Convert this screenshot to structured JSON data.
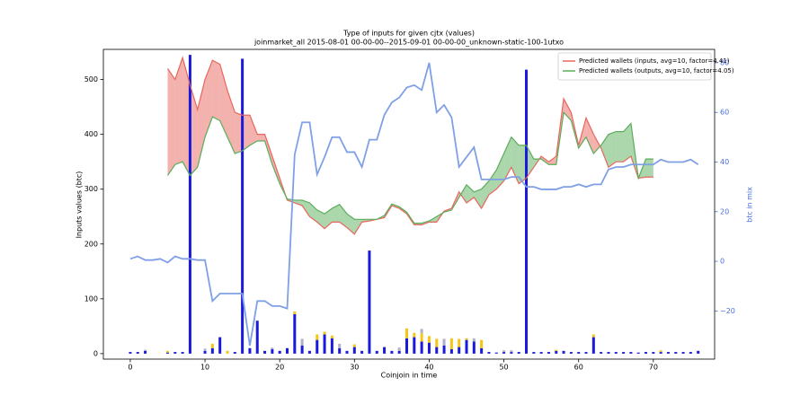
{
  "chart_data": {
    "type": "line",
    "title": "Type of inputs for given cjtx (values)",
    "subtitle": "joinmarket_all 2015-08-01 00-00-00--2015-09-01 00-00-00_unknown-static-100-1utxo",
    "xlabel": "Coinjoin in time",
    "ylabel": "Inputs values (btc)",
    "y2label": "btc in mix",
    "y2color": "#4a6ee0",
    "xlim": [
      -3.6,
      78.2
    ],
    "ylim": [
      -10,
      555
    ],
    "y2lim": [
      -39.4,
      85.4
    ],
    "xticks": [
      0,
      10,
      20,
      30,
      40,
      50,
      60,
      70
    ],
    "yticks": [
      0,
      100,
      200,
      300,
      400,
      500
    ],
    "y2ticks": [
      {
        "value": -20,
        "label": "−20"
      },
      0,
      20,
      40,
      60,
      80
    ],
    "legend": "upper right",
    "fill_between": [
      0,
      1
    ],
    "series": [
      {
        "name": "Predicted wallets (inputs, avg=10, factor=4.41)",
        "color": "#e8665e",
        "x": [
          5,
          6,
          7,
          8,
          9,
          10,
          11,
          12,
          13,
          14,
          15,
          16,
          17,
          18,
          19,
          20,
          21,
          22,
          23,
          24,
          25,
          26,
          27,
          28,
          29,
          30,
          31,
          32,
          33,
          34,
          35,
          36,
          37,
          38,
          39,
          40,
          41,
          42,
          43,
          44,
          45,
          46,
          47,
          48,
          49,
          50,
          51,
          52,
          53,
          54,
          55,
          56,
          57,
          58,
          59,
          60,
          61,
          62,
          63,
          64,
          65,
          66,
          67,
          68,
          69,
          70
        ],
        "values": [
          520,
          500,
          540,
          490,
          445,
          500,
          535,
          528,
          480,
          440,
          435,
          435,
          400,
          400,
          360,
          320,
          280,
          275,
          270,
          250,
          240,
          228,
          240,
          240,
          230,
          218,
          240,
          242,
          245,
          248,
          270,
          265,
          255,
          235,
          235,
          240,
          240,
          260,
          265,
          295,
          275,
          285,
          265,
          290,
          300,
          315,
          340,
          310,
          320,
          340,
          360,
          350,
          360,
          465,
          440,
          380,
          430,
          400,
          375,
          340,
          350,
          350,
          360,
          320,
          322,
          322
        ]
      },
      {
        "name": "Predicted wallets (outputs, avg=10, factor=4.05)",
        "color": "#5aad5a",
        "x": [
          5,
          6,
          7,
          8,
          9,
          10,
          11,
          12,
          13,
          14,
          15,
          16,
          17,
          18,
          19,
          20,
          21,
          22,
          23,
          24,
          25,
          26,
          27,
          28,
          29,
          30,
          31,
          32,
          33,
          34,
          35,
          36,
          37,
          38,
          39,
          40,
          41,
          42,
          43,
          44,
          45,
          46,
          47,
          48,
          49,
          50,
          51,
          52,
          53,
          54,
          55,
          56,
          57,
          58,
          59,
          60,
          61,
          62,
          63,
          64,
          65,
          66,
          67,
          68,
          69,
          70
        ],
        "values": [
          325,
          345,
          350,
          325,
          340,
          395,
          432,
          425,
          395,
          365,
          370,
          380,
          388,
          388,
          345,
          310,
          282,
          280,
          280,
          275,
          262,
          255,
          265,
          272,
          255,
          245,
          245,
          245,
          245,
          252,
          273,
          268,
          258,
          238,
          238,
          242,
          250,
          258,
          262,
          285,
          308,
          295,
          300,
          315,
          335,
          365,
          395,
          380,
          380,
          355,
          355,
          345,
          345,
          440,
          425,
          375,
          395,
          365,
          380,
          400,
          405,
          405,
          420,
          320,
          355,
          355
        ]
      },
      {
        "color": "#7fa0e6",
        "axis": "y2",
        "x": [
          0,
          1,
          2,
          3,
          4,
          5,
          6,
          7,
          8,
          9,
          10,
          11,
          12,
          13,
          14,
          15,
          16,
          17,
          18,
          19,
          20,
          21,
          22,
          23,
          24,
          25,
          26,
          27,
          28,
          29,
          30,
          31,
          32,
          33,
          34,
          35,
          36,
          37,
          38,
          39,
          40,
          41,
          42,
          43,
          44,
          45,
          46,
          47,
          48,
          49,
          50,
          51,
          52,
          53,
          54,
          55,
          56,
          57,
          58,
          59,
          60,
          61,
          62,
          63,
          64,
          65,
          66,
          67,
          68,
          69,
          70,
          71,
          72,
          73,
          74,
          75,
          76
        ],
        "values": [
          1,
          2,
          0.5,
          0.5,
          1,
          -0.5,
          2,
          1,
          1,
          0.5,
          0.5,
          -16,
          -13,
          -13,
          -13,
          -13,
          -34,
          -16,
          -16,
          -18,
          -18,
          -19,
          43,
          56,
          56,
          35,
          42,
          50,
          50,
          44,
          44,
          38,
          49,
          49,
          59,
          64,
          66,
          70,
          71,
          69,
          80,
          60,
          63,
          58,
          38,
          42,
          46,
          33,
          33,
          33,
          33,
          34,
          34,
          30,
          30,
          29,
          29,
          29,
          30,
          30,
          31,
          30,
          31,
          31,
          37,
          38,
          38,
          39,
          39,
          39,
          39,
          41,
          40,
          40,
          40,
          41,
          39
        ]
      }
    ],
    "bars": [
      {
        "color": "#1a1adb",
        "x": [
          0,
          1,
          2,
          3,
          4,
          5,
          6,
          7,
          8,
          9,
          10,
          11,
          12,
          13,
          14,
          15,
          16,
          17,
          18,
          19,
          20,
          21,
          22,
          23,
          24,
          25,
          26,
          27,
          28,
          29,
          30,
          31,
          32,
          33,
          34,
          35,
          36,
          37,
          38,
          39,
          40,
          41,
          42,
          43,
          44,
          45,
          46,
          47,
          48,
          49,
          50,
          51,
          52,
          53,
          54,
          55,
          56,
          57,
          58,
          59,
          60,
          61,
          62,
          63,
          64,
          65,
          66,
          67,
          68,
          69,
          70,
          71,
          72,
          73,
          74,
          75,
          76
        ],
        "values": [
          3,
          3,
          5,
          0,
          0,
          2,
          3,
          3,
          545,
          0,
          5,
          10,
          30,
          0,
          3,
          538,
          10,
          60,
          5,
          8,
          5,
          10,
          72,
          15,
          5,
          25,
          35,
          28,
          10,
          5,
          12,
          5,
          188,
          5,
          12,
          5,
          5,
          28,
          30,
          22,
          20,
          12,
          15,
          8,
          12,
          25,
          22,
          10,
          3,
          2,
          3,
          3,
          3,
          518,
          3,
          3,
          3,
          5,
          5,
          3,
          3,
          3,
          30,
          3,
          3,
          3,
          3,
          3,
          2,
          3,
          3,
          3,
          3,
          3,
          3,
          3,
          5
        ]
      },
      {
        "color": "#f5c518",
        "x": [
          5,
          11,
          13,
          22,
          25,
          26,
          27,
          30,
          37,
          38,
          39,
          40,
          41,
          43,
          44,
          45,
          47,
          57,
          62,
          71
        ],
        "values": [
          3,
          8,
          5,
          5,
          10,
          5,
          5,
          5,
          18,
          8,
          15,
          12,
          15,
          20,
          15,
          3,
          15,
          2,
          5,
          3
        ]
      },
      {
        "color": "#b0b0c8",
        "x": [
          2,
          10,
          19,
          23,
          28,
          36,
          39,
          42,
          46,
          50,
          51
        ],
        "values": [
          2,
          4,
          3,
          12,
          8,
          6,
          8,
          12,
          6,
          3,
          3
        ]
      }
    ]
  }
}
